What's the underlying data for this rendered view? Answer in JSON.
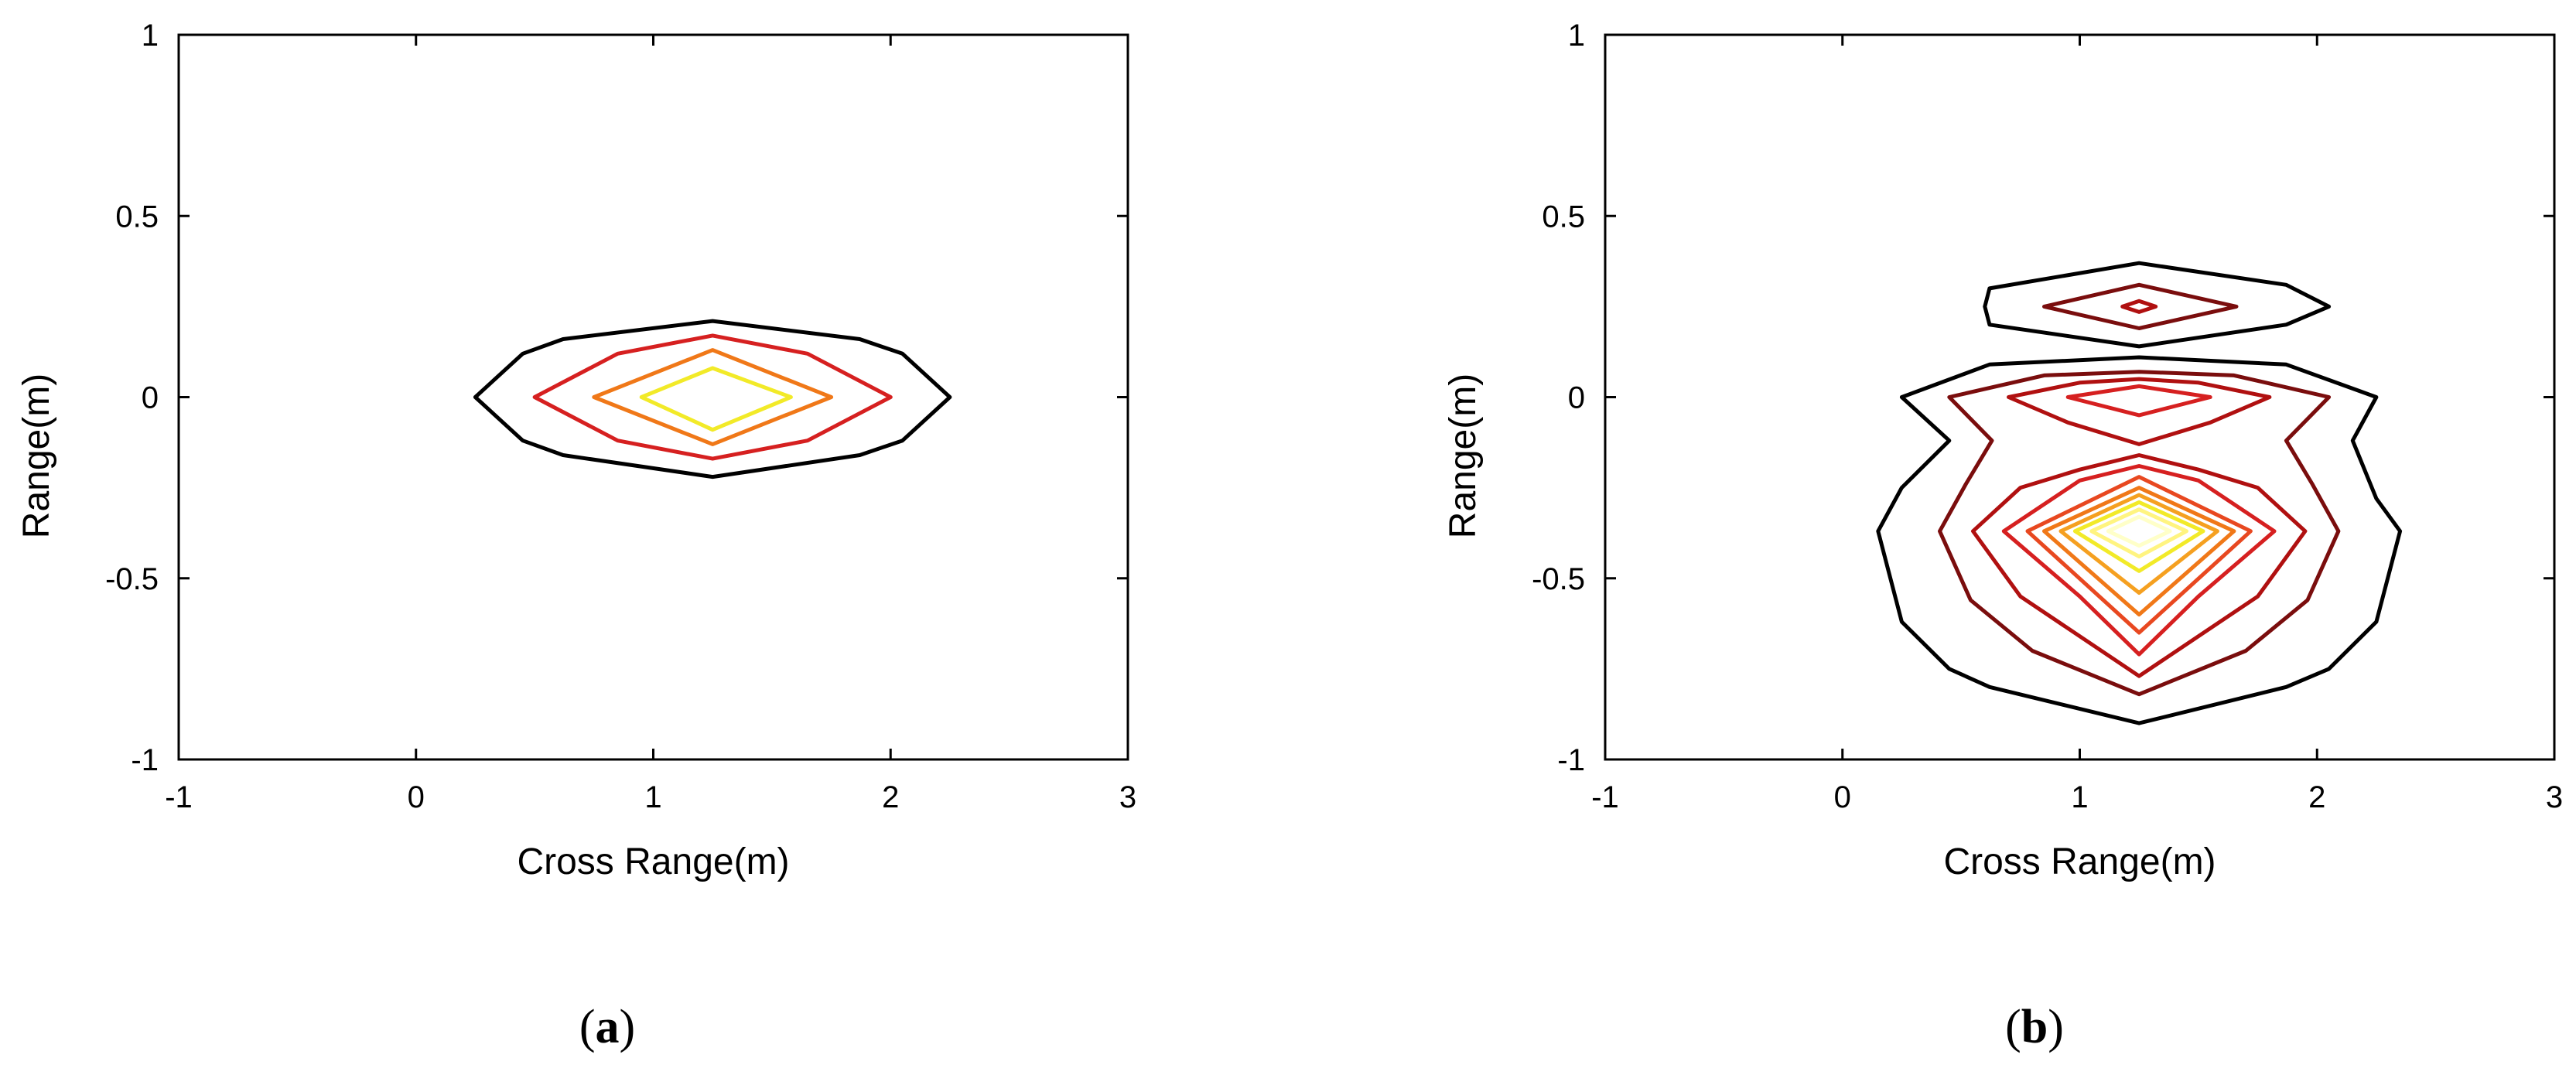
{
  "figure": {
    "panels": [
      {
        "tag_open": "(",
        "tag_letter": "a",
        "tag_close": ")"
      },
      {
        "tag_open": "(",
        "tag_letter": "b",
        "tag_close": ")"
      }
    ]
  },
  "chart_data": [
    {
      "type": "contour",
      "title": "",
      "xlabel": "Cross Range(m)",
      "ylabel": "Range(m)",
      "xlim": [
        -1,
        3
      ],
      "ylim": [
        -1,
        1
      ],
      "xticks": [
        -1,
        0,
        1,
        2,
        3
      ],
      "xtick_labels": [
        "-1",
        "0",
        "1",
        "2",
        "3"
      ],
      "yticks": [
        -1,
        -0.5,
        0,
        0.5,
        1
      ],
      "ytick_labels": [
        "-1",
        "-0.5",
        "0",
        "0.5",
        "1"
      ],
      "grid": false,
      "legend": "none",
      "contours": [
        {
          "level": 1,
          "color": "#000000",
          "points": [
            [
              0.25,
              0
            ],
            [
              0.45,
              0.12
            ],
            [
              0.62,
              0.16
            ],
            [
              1.25,
              0.21
            ],
            [
              1.87,
              0.16
            ],
            [
              2.05,
              0.12
            ],
            [
              2.25,
              0
            ],
            [
              2.05,
              -0.12
            ],
            [
              1.87,
              -0.16
            ],
            [
              1.25,
              -0.22
            ],
            [
              0.62,
              -0.16
            ],
            [
              0.45,
              -0.12
            ]
          ]
        },
        {
          "level": 2,
          "color": "#d62020",
          "points": [
            [
              0.5,
              0
            ],
            [
              0.85,
              0.12
            ],
            [
              1.25,
              0.17
            ],
            [
              1.65,
              0.12
            ],
            [
              2.0,
              0
            ],
            [
              1.65,
              -0.12
            ],
            [
              1.25,
              -0.17
            ],
            [
              0.85,
              -0.12
            ]
          ]
        },
        {
          "level": 3,
          "color": "#f07818",
          "points": [
            [
              0.75,
              0
            ],
            [
              1.25,
              0.13
            ],
            [
              1.75,
              0
            ],
            [
              1.25,
              -0.13
            ]
          ]
        },
        {
          "level": 4,
          "color": "#f2ea28",
          "points": [
            [
              0.95,
              0
            ],
            [
              1.25,
              0.08
            ],
            [
              1.58,
              0
            ],
            [
              1.25,
              -0.09
            ]
          ]
        }
      ]
    },
    {
      "type": "contour",
      "title": "",
      "xlabel": "Cross Range(m)",
      "ylabel": "Range(m)",
      "xlim": [
        -1,
        3
      ],
      "ylim": [
        -1,
        1
      ],
      "xticks": [
        -1,
        0,
        1,
        2,
        3
      ],
      "xtick_labels": [
        "-1",
        "0",
        "1",
        "2",
        "3"
      ],
      "yticks": [
        -1,
        -0.5,
        0,
        0.5,
        1
      ],
      "ytick_labels": [
        "-1",
        "-0.5",
        "0",
        "0.5",
        "1"
      ],
      "grid": false,
      "legend": "none",
      "contours": [
        {
          "level": 1,
          "color": "#000000",
          "points": [
            [
              0.6,
              0.25
            ],
            [
              0.62,
              0.3
            ],
            [
              1.25,
              0.37
            ],
            [
              1.87,
              0.31
            ],
            [
              2.05,
              0.25
            ],
            [
              1.87,
              0.2
            ],
            [
              1.25,
              0.14
            ],
            [
              0.62,
              0.2
            ]
          ]
        },
        {
          "level": 2,
          "color": "#7a0d0d",
          "points": [
            [
              0.85,
              0.25
            ],
            [
              1.25,
              0.31
            ],
            [
              1.66,
              0.25
            ],
            [
              1.25,
              0.19
            ]
          ]
        },
        {
          "level": 3,
          "color": "#b01010",
          "points": [
            [
              1.18,
              0.25
            ],
            [
              1.25,
              0.265
            ],
            [
              1.32,
              0.25
            ],
            [
              1.25,
              0.235
            ]
          ]
        },
        {
          "level": 1,
          "color": "#000000",
          "points": [
            [
              0.25,
              0
            ],
            [
              0.62,
              0.09
            ],
            [
              1.25,
              0.11
            ],
            [
              1.87,
              0.09
            ],
            [
              2.25,
              0
            ],
            [
              2.15,
              -0.12
            ],
            [
              2.25,
              -0.28
            ],
            [
              2.35,
              -0.37
            ],
            [
              2.25,
              -0.62
            ],
            [
              2.05,
              -0.75
            ],
            [
              1.87,
              -0.8
            ],
            [
              1.25,
              -0.9
            ],
            [
              0.62,
              -0.8
            ],
            [
              0.45,
              -0.75
            ],
            [
              0.25,
              -0.62
            ],
            [
              0.15,
              -0.37
            ],
            [
              0.25,
              -0.25
            ],
            [
              0.45,
              -0.12
            ]
          ]
        },
        {
          "level": 2,
          "color": "#7a0d0d",
          "points": [
            [
              0.45,
              0
            ],
            [
              0.85,
              0.06
            ],
            [
              1.25,
              0.07
            ],
            [
              1.65,
              0.06
            ],
            [
              2.05,
              0
            ],
            [
              1.87,
              -0.12
            ],
            [
              1.98,
              -0.24
            ],
            [
              2.09,
              -0.37
            ],
            [
              1.96,
              -0.56
            ],
            [
              1.7,
              -0.7
            ],
            [
              1.25,
              -0.82
            ],
            [
              0.8,
              -0.7
            ],
            [
              0.54,
              -0.56
            ],
            [
              0.41,
              -0.37
            ],
            [
              0.52,
              -0.24
            ],
            [
              0.63,
              -0.12
            ]
          ]
        },
        {
          "level": 3,
          "color": "#b01010",
          "points": [
            [
              0.7,
              0
            ],
            [
              1.0,
              0.04
            ],
            [
              1.25,
              0.05
            ],
            [
              1.5,
              0.04
            ],
            [
              1.8,
              0
            ],
            [
              1.55,
              -0.07
            ],
            [
              1.25,
              -0.13
            ],
            [
              0.95,
              -0.07
            ]
          ]
        },
        {
          "level": 4,
          "color": "#d62020",
          "points": [
            [
              0.95,
              0
            ],
            [
              1.25,
              0.03
            ],
            [
              1.55,
              0
            ],
            [
              1.25,
              -0.05
            ]
          ]
        },
        {
          "level": 3,
          "color": "#b01010",
          "points": [
            [
              0.55,
              -0.37
            ],
            [
              0.75,
              -0.25
            ],
            [
              1.0,
              -0.2
            ],
            [
              1.25,
              -0.16
            ],
            [
              1.5,
              -0.2
            ],
            [
              1.75,
              -0.25
            ],
            [
              1.95,
              -0.37
            ],
            [
              1.75,
              -0.55
            ],
            [
              1.5,
              -0.66
            ],
            [
              1.25,
              -0.77
            ],
            [
              1.0,
              -0.66
            ],
            [
              0.75,
              -0.55
            ]
          ]
        },
        {
          "level": 4,
          "color": "#d62020",
          "points": [
            [
              0.68,
              -0.37
            ],
            [
              1.0,
              -0.23
            ],
            [
              1.25,
              -0.19
            ],
            [
              1.5,
              -0.23
            ],
            [
              1.82,
              -0.37
            ],
            [
              1.5,
              -0.55
            ],
            [
              1.25,
              -0.71
            ],
            [
              1.0,
              -0.55
            ]
          ]
        },
        {
          "level": 5,
          "color": "#e84820",
          "points": [
            [
              0.78,
              -0.37
            ],
            [
              1.25,
              -0.22
            ],
            [
              1.72,
              -0.37
            ],
            [
              1.25,
              -0.65
            ]
          ]
        },
        {
          "level": 6,
          "color": "#f07818",
          "points": [
            [
              0.85,
              -0.37
            ],
            [
              1.25,
              -0.25
            ],
            [
              1.65,
              -0.37
            ],
            [
              1.25,
              -0.6
            ]
          ]
        },
        {
          "level": 7,
          "color": "#f5a020",
          "points": [
            [
              0.92,
              -0.37
            ],
            [
              1.25,
              -0.27
            ],
            [
              1.58,
              -0.37
            ],
            [
              1.25,
              -0.54
            ]
          ]
        },
        {
          "level": 8,
          "color": "#f2ea28",
          "points": [
            [
              0.98,
              -0.37
            ],
            [
              1.25,
              -0.29
            ],
            [
              1.52,
              -0.37
            ],
            [
              1.25,
              -0.48
            ]
          ]
        },
        {
          "level": 9,
          "color": "#fff480",
          "points": [
            [
              1.05,
              -0.37
            ],
            [
              1.25,
              -0.31
            ],
            [
              1.45,
              -0.37
            ],
            [
              1.25,
              -0.44
            ]
          ]
        },
        {
          "level": 10,
          "color": "#ffffc8",
          "points": [
            [
              1.12,
              -0.37
            ],
            [
              1.25,
              -0.33
            ],
            [
              1.38,
              -0.37
            ],
            [
              1.25,
              -0.41
            ]
          ]
        }
      ]
    }
  ]
}
